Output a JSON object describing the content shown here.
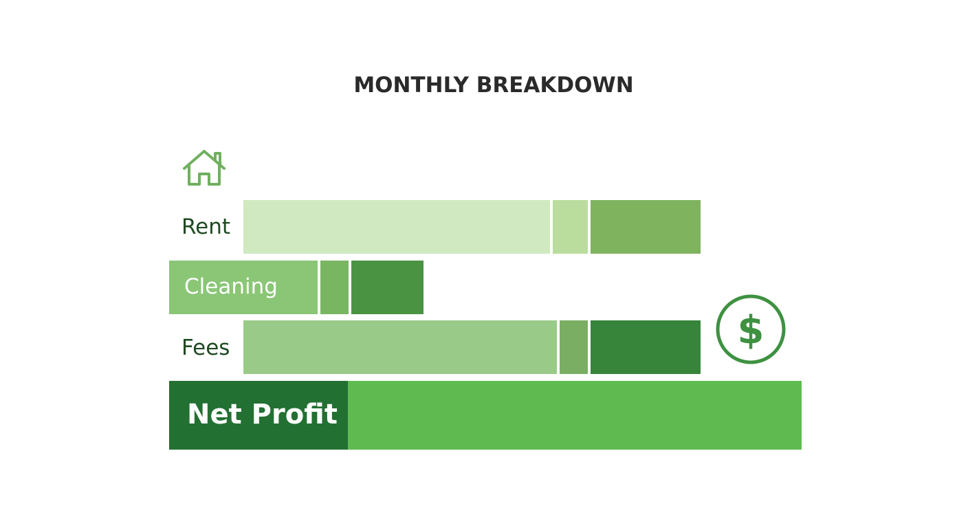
{
  "chart_data": {
    "type": "bar",
    "orientation": "horizontal",
    "stacked": true,
    "title": "MONTHLY BREAKDOWN",
    "categories": [
      "Rent",
      "Cleaning",
      "Fees",
      "Net Profit"
    ],
    "rows": [
      {
        "label": "Rent",
        "segments": [
          {
            "value": 45,
            "color": "#d0e9c1"
          },
          {
            "value": 5.5,
            "color": "#badd9e"
          },
          {
            "value": 16,
            "color": "#7fb35e"
          }
        ]
      },
      {
        "label": "Cleaning",
        "segments": [
          {
            "value": 22,
            "color": "#8ac676"
          },
          {
            "value": 4.5,
            "color": "#78b662"
          },
          {
            "value": 10.5,
            "color": "#4a9343"
          }
        ]
      },
      {
        "label": "Fees",
        "segments": [
          {
            "value": 46,
            "color": "#9aca88"
          },
          {
            "value": 4.5,
            "color": "#7aae62"
          },
          {
            "value": 16,
            "color": "#36853b"
          }
        ]
      },
      {
        "label": "Net Profit",
        "segments": [
          {
            "value": 26,
            "color": "#237033"
          },
          {
            "value": 66,
            "color": "#5fba50"
          }
        ]
      }
    ],
    "legend": "none",
    "grid": false
  },
  "icons": {
    "house": "house-icon",
    "dollar": "dollar-circle-icon",
    "accent_color": "#6fb05f",
    "dollar_color": "#3e9141"
  }
}
